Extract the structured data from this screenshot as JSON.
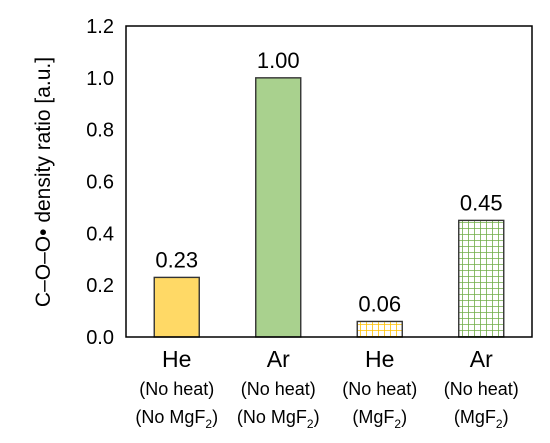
{
  "chart_data": {
    "type": "bar",
    "ylabel": "C–O–O• density ratio [a.u.]",
    "ylim": [
      0,
      1.2
    ],
    "yticks": [
      "0.0",
      "0.2",
      "0.4",
      "0.6",
      "0.8",
      "1.0",
      "1.2"
    ],
    "grid": false,
    "categories": [
      {
        "gas": "He",
        "heat": "(No heat)",
        "window": "(No MgF",
        "window_sub": "2",
        "window_end": ")"
      },
      {
        "gas": "Ar",
        "heat": "(No heat)",
        "window": "(No MgF",
        "window_sub": "2",
        "window_end": ")"
      },
      {
        "gas": "He",
        "heat": "(No heat)",
        "window": "(MgF",
        "window_sub": "2",
        "window_end": ")"
      },
      {
        "gas": "Ar",
        "heat": "(No heat)",
        "window": "(MgF",
        "window_sub": "2",
        "window_end": ")"
      }
    ],
    "values": [
      0.23,
      1.0,
      0.06,
      0.45
    ],
    "data_labels": [
      "0.23",
      "1.00",
      "0.06",
      "0.45"
    ],
    "bar_styles": [
      {
        "fill": "#FFD966",
        "stroke": "#333333",
        "pattern": "solid"
      },
      {
        "fill": "#A9D18E",
        "stroke": "#333333",
        "pattern": "solid"
      },
      {
        "fill": "#FFD966",
        "stroke": "#333333",
        "pattern": "grid"
      },
      {
        "fill": "#A9D18E",
        "stroke": "#333333",
        "pattern": "grid"
      }
    ]
  }
}
